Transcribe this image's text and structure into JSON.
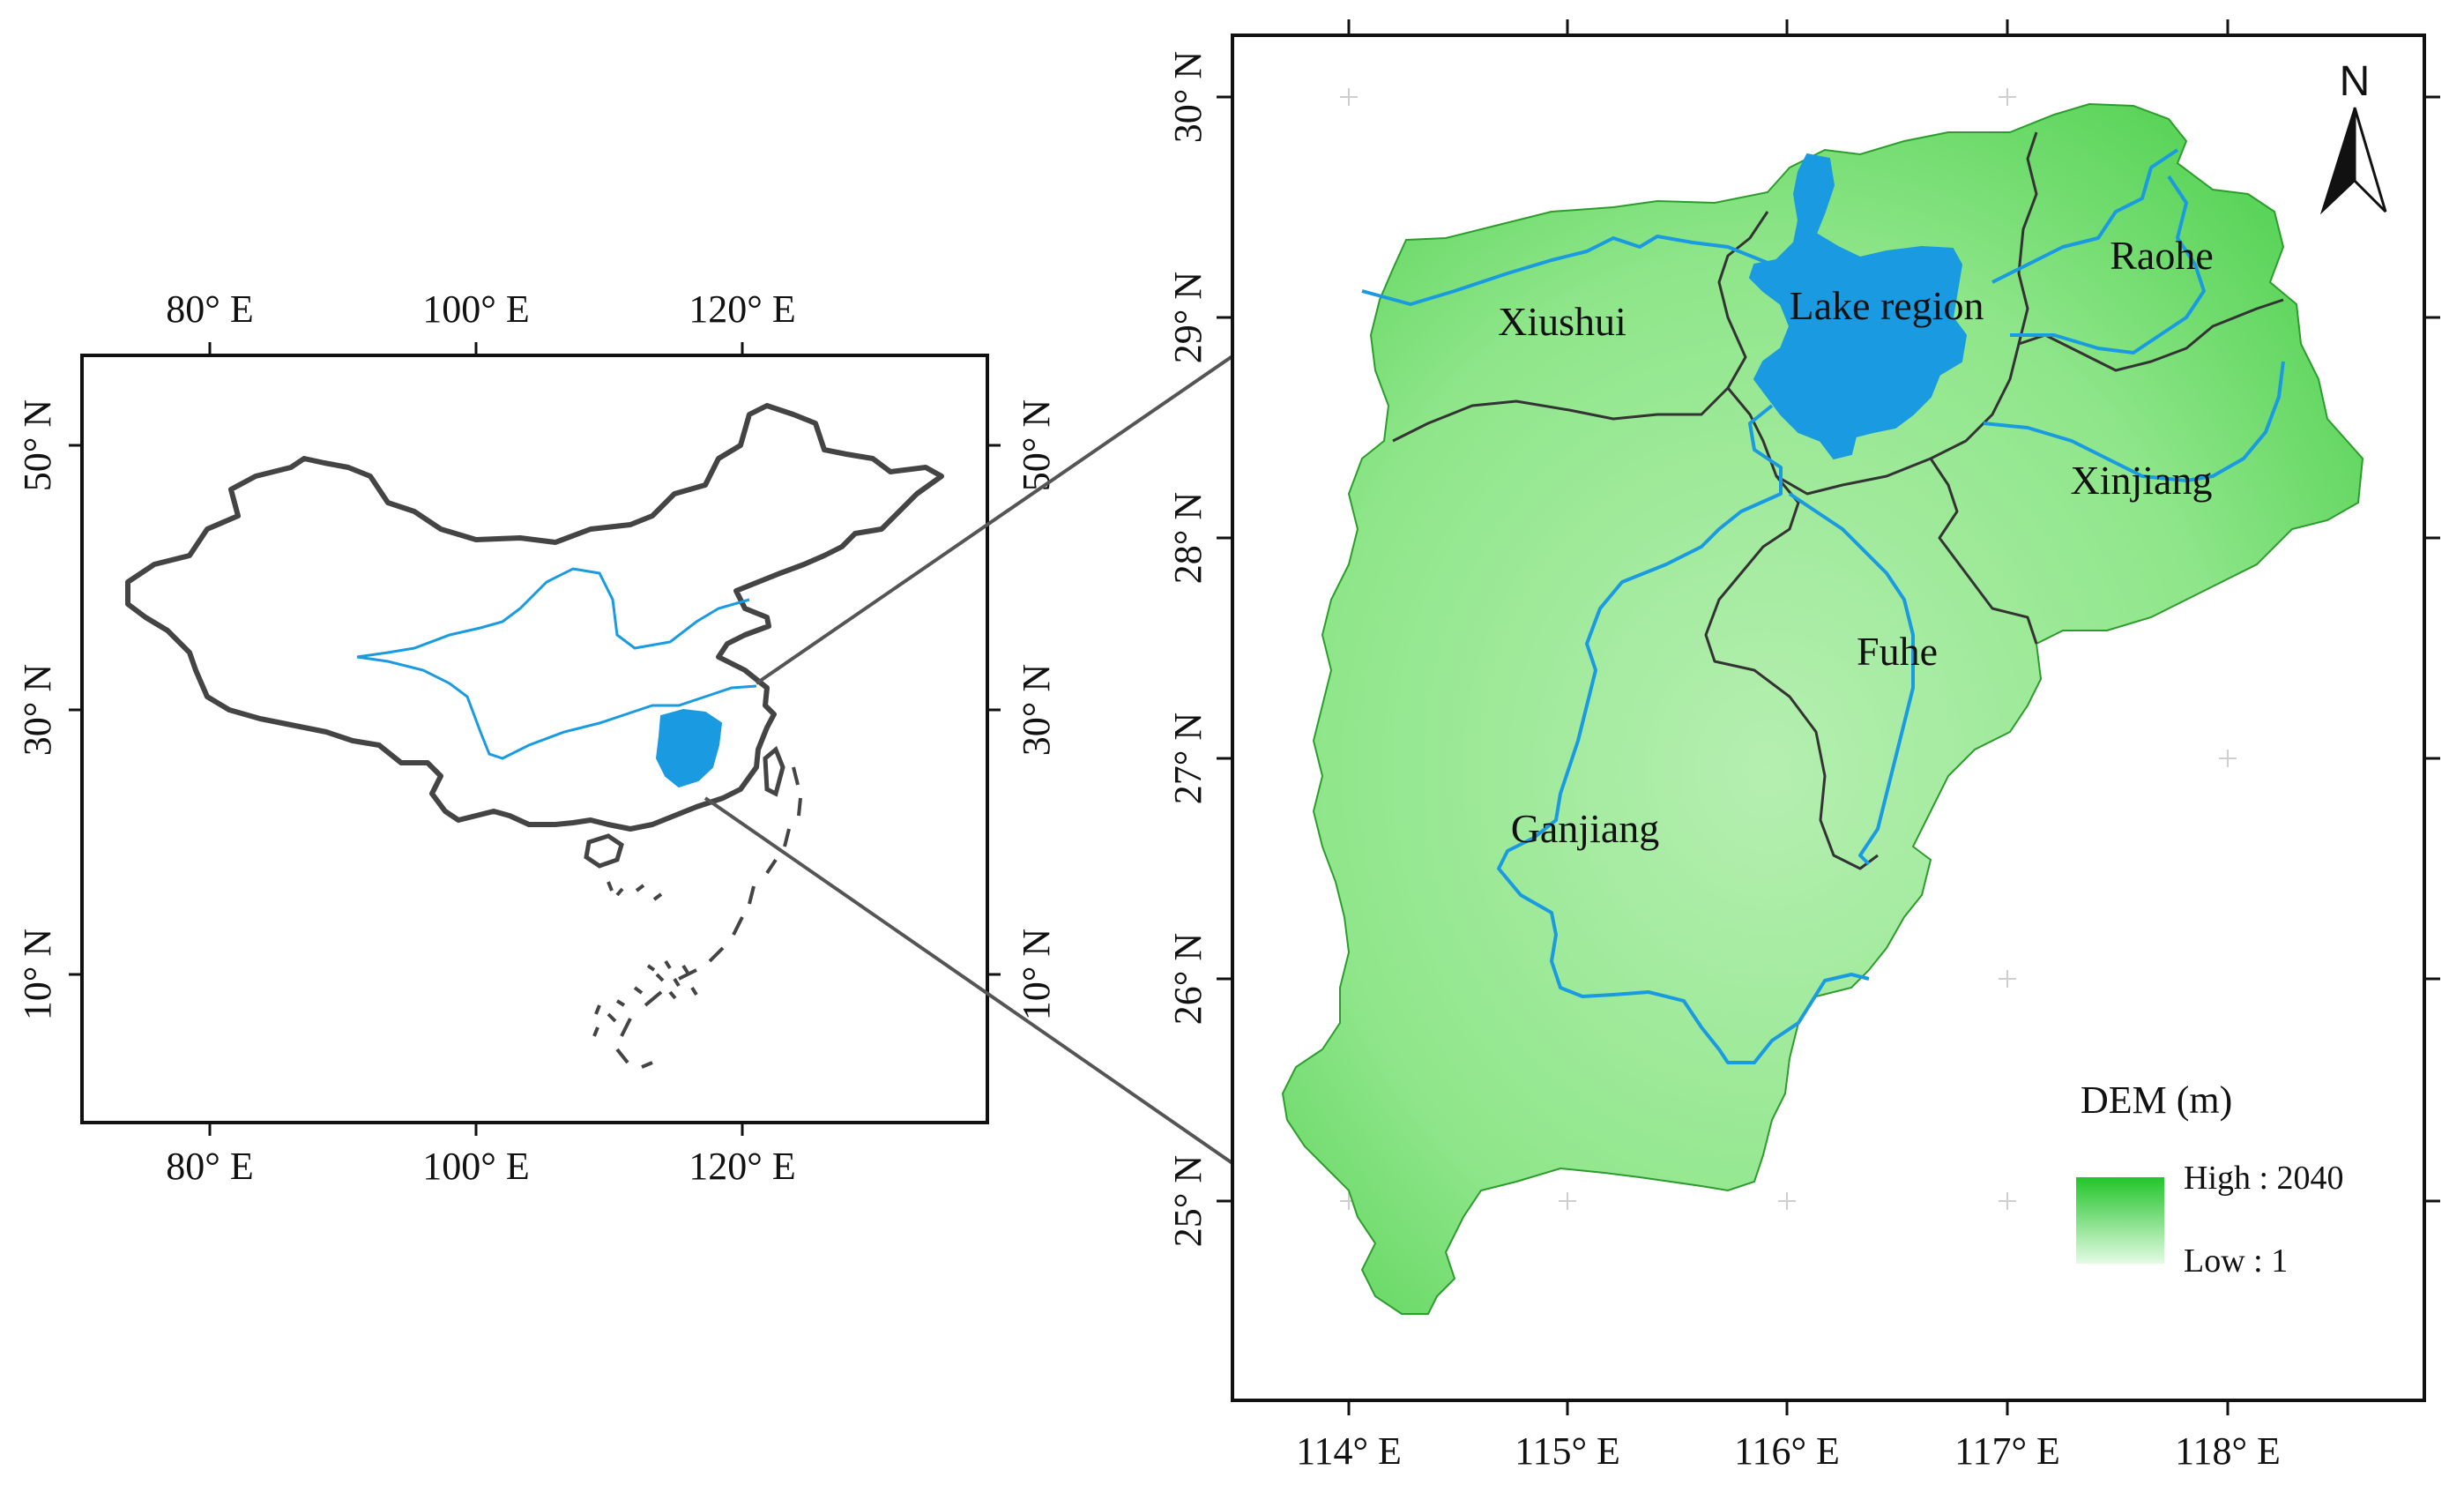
{
  "overview_map": {
    "lon_ticks_top": [
      "80° E",
      "100° E",
      "120° E"
    ],
    "lon_ticks_bottom": [
      "80° E",
      "100° E",
      "120° E"
    ],
    "lat_ticks_left": [
      "50° N",
      "30° N",
      "10° N"
    ],
    "lat_ticks_right": [
      "50° N",
      "30° N",
      "10° N"
    ]
  },
  "detail_map": {
    "lon_ticks": [
      "114° E",
      "115° E",
      "116° E",
      "117° E",
      "118° E"
    ],
    "lat_ticks": [
      "30° N",
      "29° N",
      "28° N",
      "27° N",
      "26° N",
      "25° N"
    ],
    "regions": [
      "Xiushui",
      "Lake region",
      "Raohe",
      "Xinjiang",
      "Fuhe",
      "Ganjiang"
    ],
    "north_arrow": "N",
    "legend": {
      "title": "DEM (m)",
      "high_label": "High : 2040",
      "low_label": "Low : 1",
      "high_color": "#22c52a",
      "low_color": "#e4fbe4"
    },
    "colors": {
      "basin_fill": "#7fe07a",
      "water": "#1a9ae0",
      "boundary": "#333333"
    }
  }
}
